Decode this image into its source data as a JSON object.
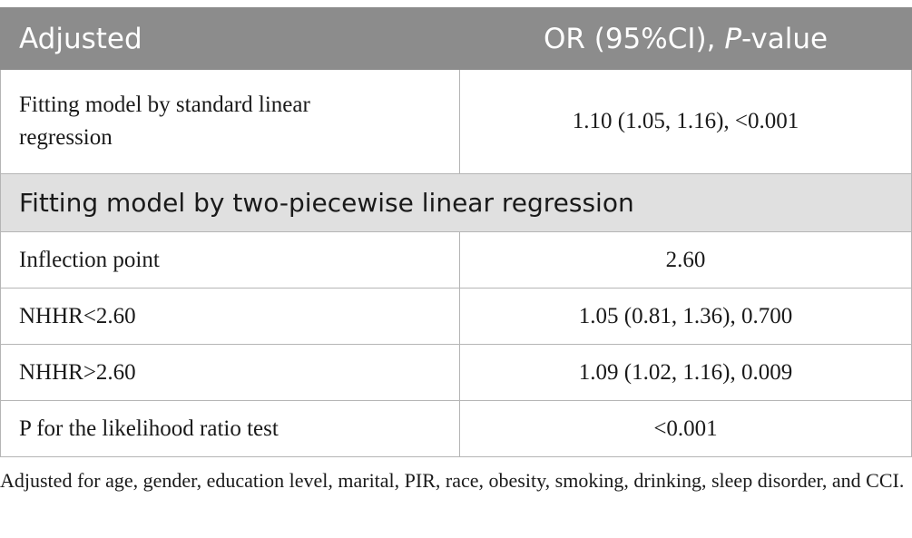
{
  "table": {
    "header": {
      "col1": "Adjusted",
      "col2_prefix": "OR (95%CI), ",
      "col2_italic": "P",
      "col2_suffix": "-value"
    },
    "row_standard": {
      "label": "Fitting model by standard linear regression",
      "value": "1.10 (1.05, 1.16), <0.001"
    },
    "section_title": "Fitting model by two-piecewise linear regression",
    "rows": [
      {
        "label": "Inflection point",
        "value": "2.60"
      },
      {
        "label": "NHHR<2.60",
        "value": "1.05 (0.81, 1.36), 0.700"
      },
      {
        "label": "NHHR>2.60",
        "value": "1.09 (1.02, 1.16), 0.009"
      },
      {
        "label": "P for the likelihood ratio test",
        "value": "<0.001"
      }
    ]
  },
  "footnote": "Adjusted for age, gender, education level, marital, PIR, race, obesity, smoking, drinking, sleep disorder, and CCI."
}
